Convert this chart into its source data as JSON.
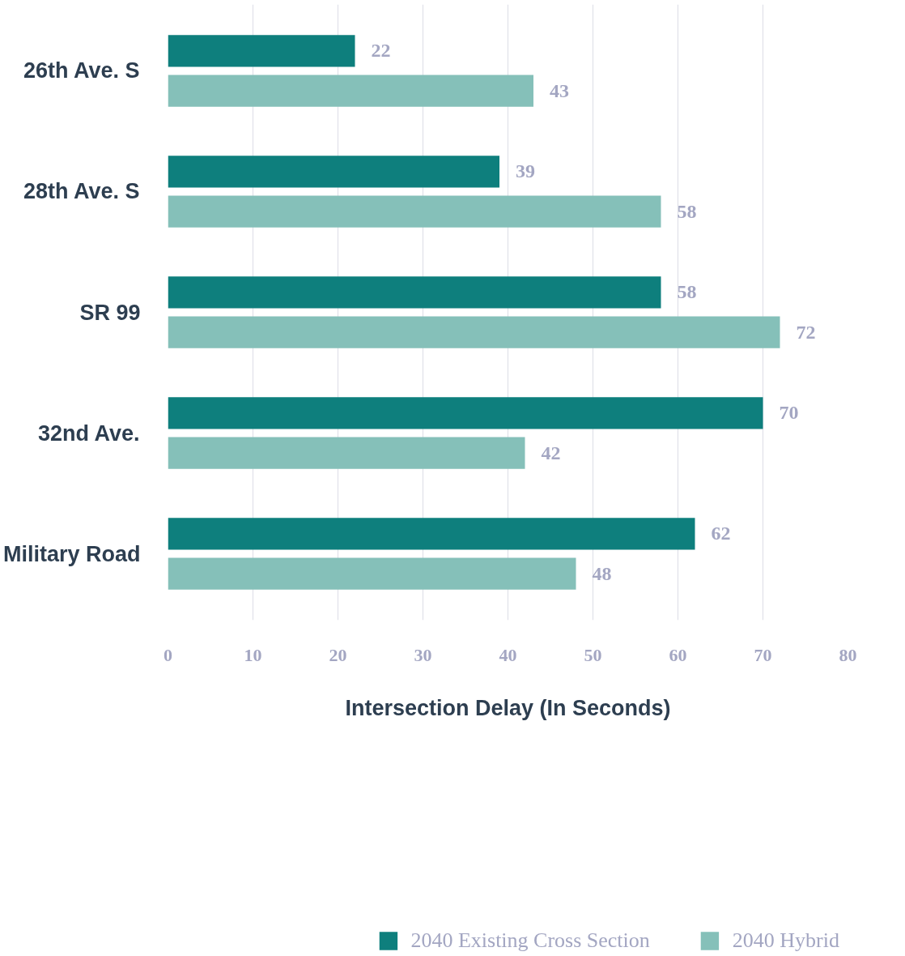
{
  "chart_data": {
    "type": "bar",
    "orientation": "horizontal",
    "xlabel": "Intersection Delay (In Seconds)",
    "categories": [
      "26th Ave. S",
      "28th Ave. S",
      "SR 99",
      "32nd Ave.",
      "Military Road"
    ],
    "series": [
      {
        "name": "2040 Existing Cross Section",
        "color": "#0e7f7d",
        "values": [
          22,
          39,
          58,
          70,
          62
        ]
      },
      {
        "name": "2040 Hybrid",
        "color": "#85c0b9",
        "values": [
          43,
          58,
          72,
          42,
          48
        ]
      }
    ],
    "xlim": [
      0,
      80
    ],
    "xticks": [
      0,
      10,
      20,
      30,
      40,
      50,
      60,
      70,
      80
    ],
    "grid": "x",
    "legend": "bottom",
    "data_labels": true
  }
}
